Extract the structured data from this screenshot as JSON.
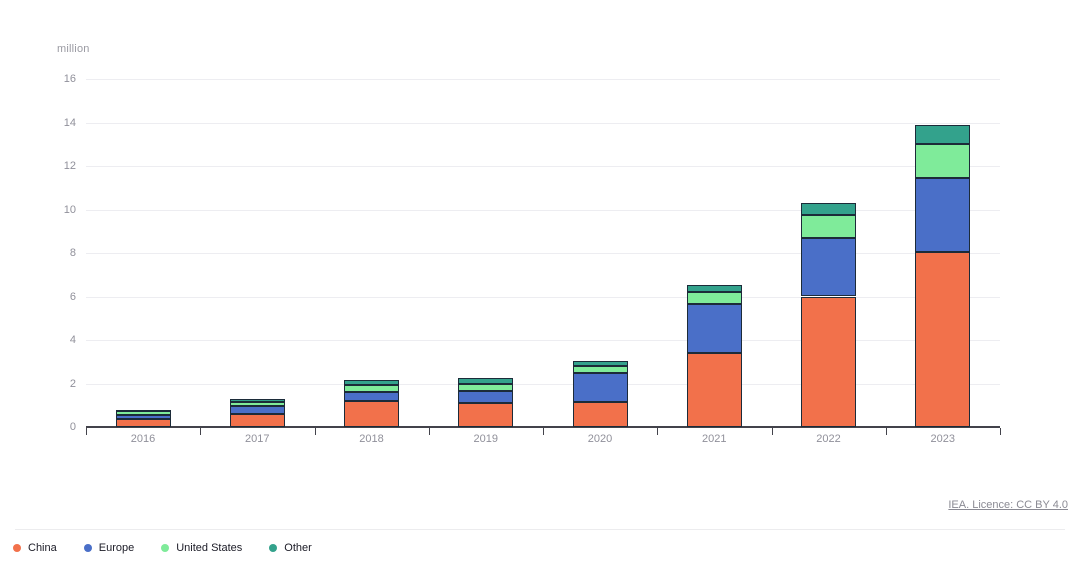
{
  "chart": {
    "unit_label": "million",
    "attribution": "IEA. Licence: CC BY 4.0",
    "chart_data": {
      "type": "bar",
      "stacked": true,
      "title": "",
      "xlabel": "",
      "ylabel": "million",
      "ylim": [
        0,
        16
      ],
      "yticks": [
        0,
        2,
        4,
        6,
        8,
        10,
        12,
        14,
        16
      ],
      "grid": true,
      "legend_position": "bottom-left",
      "categories": [
        "2016",
        "2017",
        "2018",
        "2019",
        "2020",
        "2021",
        "2022",
        "2023"
      ],
      "series": [
        {
          "name": "China",
          "color": "#F2714B",
          "values": [
            0.35,
            0.6,
            1.2,
            1.1,
            1.15,
            3.4,
            6.0,
            8.05
          ]
        },
        {
          "name": "Europe",
          "color": "#4A6FC8",
          "values": [
            0.2,
            0.35,
            0.4,
            0.55,
            1.35,
            2.25,
            2.7,
            3.4
          ]
        },
        {
          "name": "United States",
          "color": "#7FEB9A",
          "values": [
            0.18,
            0.22,
            0.35,
            0.35,
            0.3,
            0.55,
            1.05,
            1.55
          ]
        },
        {
          "name": "Other",
          "color": "#33A28C",
          "values": [
            0.07,
            0.12,
            0.2,
            0.25,
            0.25,
            0.35,
            0.55,
            0.9
          ]
        }
      ]
    }
  }
}
